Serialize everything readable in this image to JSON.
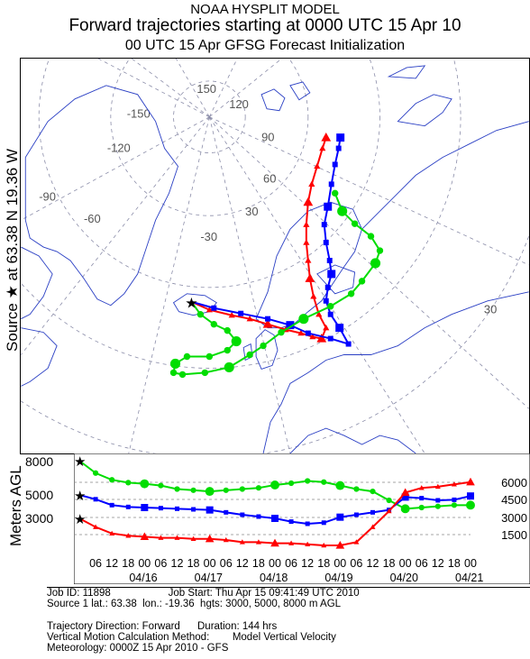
{
  "title": {
    "model": "NOAA HYSPLIT MODEL",
    "main": "Forward trajectories starting at 0000 UTC 15 Apr 10",
    "sub": "00 UTC 15 Apr    GFSG  Forecast Initialization"
  },
  "source_label": "Source ★ at   63.38 N   19.36 W",
  "map": {
    "colors": {
      "coast": "#2a3fc4",
      "grid": "#8a8ca8",
      "land": "#ffffff"
    },
    "source": {
      "lat": 63.38,
      "lon": -19.36
    },
    "lon_labels": [
      "150",
      "-150",
      "120",
      "-120",
      "90",
      "-90",
      "60",
      "-60",
      "30",
      "-30",
      "30"
    ]
  },
  "chart_data": [
    {
      "type": "line",
      "name": "trajectory-map",
      "series": [
        {
          "color": "#ff0000",
          "marker": "triangle",
          "height_m": 3000
        },
        {
          "color": "#0000ff",
          "marker": "square",
          "height_m": 5000
        },
        {
          "color": "#00dd00",
          "marker": "circle",
          "height_m": 8000
        }
      ]
    },
    {
      "type": "line",
      "name": "vertical-profile",
      "ylabel": "Meters AGL",
      "left_ticks": [
        "8000",
        "5000",
        "3000"
      ],
      "right_ticks": [
        "6000",
        "4500",
        "3000",
        "1500"
      ],
      "x_hours": [
        "06",
        "12",
        "18",
        "00",
        "06",
        "12",
        "18",
        "00",
        "06",
        "12",
        "18",
        "00",
        "06",
        "12",
        "18",
        "00",
        "06",
        "12",
        "18",
        "00",
        "06",
        "12",
        "18",
        "00"
      ],
      "x_dates": [
        "04/16",
        "04/17",
        "04/18",
        "04/19",
        "04/20",
        "04/21"
      ],
      "x_hours_elapsed": [
        0,
        144
      ],
      "series": [
        {
          "color": "#00dd00",
          "marker": "circle",
          "start_m": 8000,
          "hours": [
            0,
            6,
            12,
            18,
            24,
            30,
            36,
            42,
            48,
            54,
            60,
            66,
            72,
            78,
            84,
            90,
            96,
            102,
            108,
            114,
            120,
            126,
            132,
            138,
            144
          ],
          "values": [
            8000,
            6900,
            6300,
            6050,
            5950,
            5800,
            5500,
            5400,
            5300,
            5400,
            5500,
            5600,
            5850,
            6000,
            6200,
            6100,
            5800,
            5500,
            5300,
            4500,
            3800,
            3900,
            4000,
            4100,
            4100
          ]
        },
        {
          "color": "#0000ff",
          "marker": "square",
          "start_m": 5000,
          "hours": [
            0,
            6,
            12,
            18,
            24,
            30,
            36,
            42,
            48,
            54,
            60,
            66,
            72,
            78,
            84,
            90,
            96,
            102,
            108,
            114,
            120,
            126,
            132,
            138,
            144
          ],
          "values": [
            5000,
            4600,
            4100,
            3950,
            3900,
            3850,
            3800,
            3750,
            3700,
            3500,
            3300,
            3150,
            3000,
            2850,
            2750,
            2800,
            3100,
            3300,
            3500,
            3700,
            4800,
            4700,
            4500,
            4550,
            4900
          ]
        },
        {
          "color": "#ff0000",
          "marker": "triangle",
          "start_m": 3000,
          "hours": [
            0,
            6,
            12,
            18,
            24,
            30,
            36,
            42,
            48,
            54,
            60,
            66,
            72,
            78,
            84,
            90,
            96,
            102,
            108,
            114,
            120,
            126,
            132,
            138,
            144
          ],
          "values": [
            3000,
            2600,
            2300,
            2200,
            2150,
            2100,
            2100,
            2050,
            2050,
            2000,
            1900,
            1900,
            1850,
            1850,
            1800,
            1750,
            1750,
            1900,
            2600,
            3600,
            5200,
            5600,
            5700,
            5900,
            6100
          ]
        }
      ]
    }
  ],
  "footer": {
    "line1": "Job ID: 11898                    Job Start: Thu Apr 15 09:41:49 UTC 2010",
    "line2": "Source 1 lat.: 63.38  lon.: -19.36  hgts: 3000, 5000, 8000 m AGL",
    "line3": "",
    "line4": "Trajectory Direction: Forward      Duration: 144 hrs",
    "line5": "Vertical Motion Calculation Method:        Model Vertical Velocity",
    "line6": "Meteorology: 0000Z 15 Apr 2010 - GFS"
  }
}
